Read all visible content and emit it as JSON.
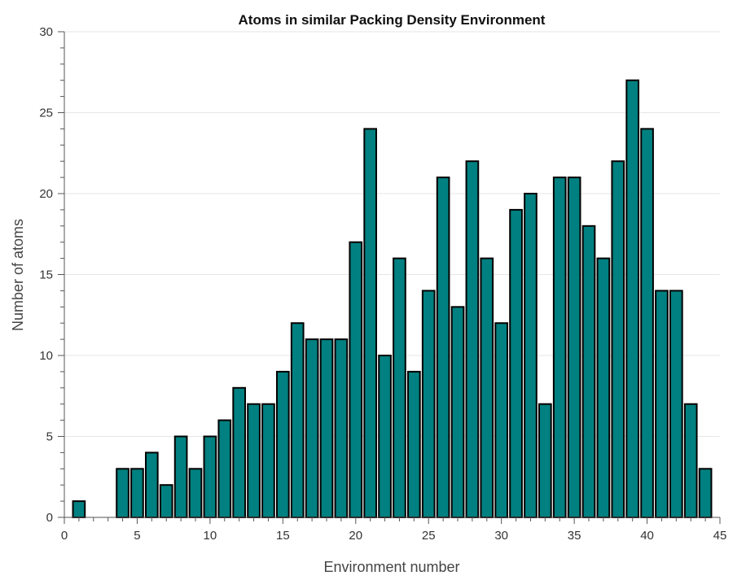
{
  "chart_data": {
    "type": "bar",
    "title": "Atoms in similar Packing Density Environment",
    "xlabel": "Environment number",
    "ylabel": "Number of atoms",
    "x": [
      1,
      2,
      3,
      4,
      5,
      6,
      7,
      8,
      9,
      10,
      11,
      12,
      13,
      14,
      15,
      16,
      17,
      18,
      19,
      20,
      21,
      22,
      23,
      24,
      25,
      26,
      27,
      28,
      29,
      30,
      31,
      32,
      33,
      34,
      35,
      36,
      37,
      38,
      39,
      40,
      41,
      42,
      43,
      44
    ],
    "values": [
      1,
      0,
      0,
      3,
      3,
      4,
      2,
      5,
      3,
      5,
      6,
      8,
      7,
      7,
      9,
      12,
      11,
      11,
      11,
      17,
      24,
      10,
      16,
      9,
      14,
      21,
      13,
      22,
      16,
      12,
      19,
      20,
      7,
      21,
      21,
      18,
      16,
      22,
      27,
      24,
      14,
      14,
      7,
      3
    ],
    "xlim": [
      0,
      45
    ],
    "ylim": [
      0,
      30
    ],
    "x_ticks": [
      0,
      5,
      10,
      15,
      20,
      25,
      30,
      35,
      40,
      45
    ],
    "y_ticks": [
      0,
      5,
      10,
      15,
      20,
      25,
      30
    ],
    "grid": "horizontal",
    "bar_color": "#008080",
    "bar_edge_color": "#000000"
  }
}
